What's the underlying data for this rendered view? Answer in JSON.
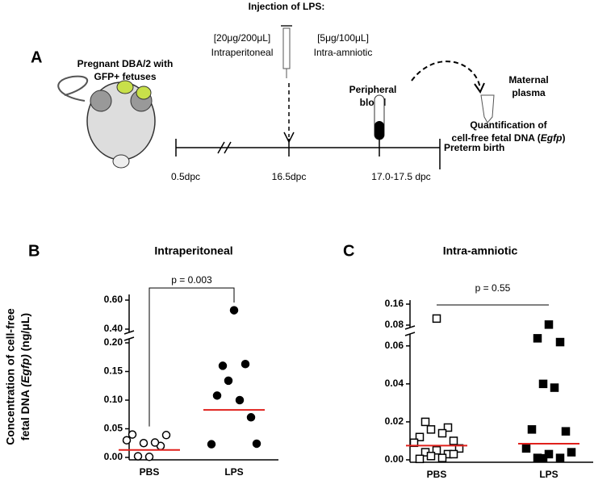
{
  "panel_a": {
    "label": "A",
    "injection": "Injection of  LPS:",
    "dose_ip": "[20μg/200μL]",
    "route_ip": "Intraperitoneal",
    "dose_ia": "[5μg/100μL]",
    "route_ia": "Intra-amniotic",
    "mouse_1": "Pregnant DBA/2 with",
    "mouse_2": "GFP+ fetuses",
    "blood_1": "Peripheral",
    "blood_2": "blood",
    "plasma_1": "Maternal",
    "plasma_2": "plasma",
    "quant_1": "Quantification of",
    "quant_2": [
      "cell-free fetal DNA (",
      "Egfp",
      ")"
    ],
    "timeline": [
      "0.5dpc",
      "16.5dpc",
      "17.0-17.5 dpc"
    ],
    "end": "Preterm birth"
  },
  "chart_data": [
    {
      "type": "strip",
      "panel_label": "B",
      "title": "Intraperitoneal",
      "categories": [
        "PBS",
        "LPS"
      ],
      "y_label": [
        "Concentration of cell-free",
        [
          "fetal DNA ",
          "(Egfp)",
          " (ng/μL)"
        ]
      ],
      "annotation": "p = 0.003",
      "mean_color": "#e0201c",
      "groups": [
        {
          "marker": "circle-open",
          "values": [
            0.001,
            0.002,
            0.02,
            0.025,
            0.026,
            0.04,
            0.039,
            0.03
          ],
          "mean": 0.013
        },
        {
          "marker": "circle",
          "values": [
            0.53,
            0.16,
            0.163,
            0.134,
            0.1,
            0.108,
            0.07,
            0.023,
            0.024
          ],
          "mean": 0.083
        }
      ],
      "y_segments": [
        {
          "ylim": [
            0,
            0.2
          ],
          "yticks": [
            {
              "value": 0,
              "label": "0.00"
            },
            0.05,
            {
              "value": 0.1,
              "label": "0.10"
            },
            0.15,
            {
              "value": 0.2,
              "label": "0.20"
            }
          ]
        },
        {
          "ylim": [
            0.4,
            0.6
          ],
          "yticks": [
            {
              "value": 0.4,
              "label": "0.40"
            },
            {
              "value": 0.6,
              "label": "0.60"
            }
          ]
        }
      ]
    },
    {
      "type": "strip",
      "panel_label": "C",
      "title": "Intra-amniotic",
      "categories": [
        "PBS",
        "LPS"
      ],
      "annotation": "p = 0.55",
      "mean_color": "#e0201c",
      "groups": [
        {
          "marker": "square-open",
          "values": [
            0.105,
            0.02,
            0.017,
            0.016,
            0.014,
            0.012,
            0.01,
            0.009,
            0.006,
            0.005,
            0.004,
            0.003,
            0.002,
            0.001,
            0.0005,
            0.003
          ],
          "mean": 0.0075
        },
        {
          "marker": "square",
          "values": [
            0.082,
            0.064,
            0.062,
            0.04,
            0.038,
            0.016,
            0.015,
            0.006,
            0.004,
            0.003,
            0.001,
            0.001,
            0.0008
          ],
          "mean": 0.0085
        }
      ],
      "y_segments": [
        {
          "ylim": [
            0,
            0.065
          ],
          "yticks": [
            {
              "value": 0,
              "label": "0.00"
            },
            0.02,
            0.04,
            0.06
          ]
        },
        {
          "ylim": [
            0.08,
            0.16
          ],
          "yticks": [
            0.08,
            0.16
          ]
        }
      ]
    }
  ]
}
